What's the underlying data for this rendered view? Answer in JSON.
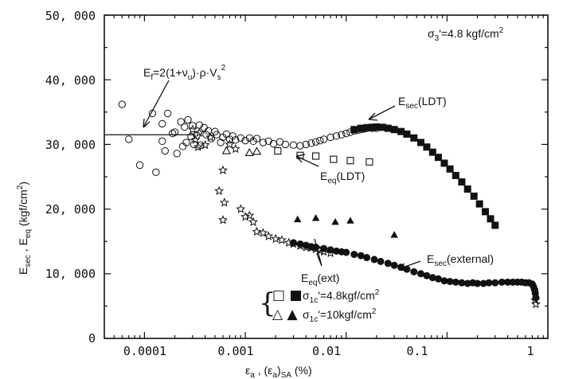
{
  "chart_data": {
    "type": "scatter",
    "title": "",
    "x_scale": "log",
    "xlim": [
      4e-05,
      1.0
    ],
    "ylim": [
      0,
      50000
    ],
    "x_ticks": [
      0.0001,
      0.001,
      0.01,
      0.1,
      1
    ],
    "x_tick_labels": [
      "0.0001",
      "0.001",
      "0.01",
      "0.1",
      "1"
    ],
    "y_ticks": [
      0,
      10000,
      20000,
      30000,
      40000,
      50000
    ],
    "y_tick_labels": [
      "0",
      "10, 000",
      "20, 000",
      "30, 000",
      "40, 000",
      "50, 000"
    ],
    "xlabel": {
      "main": "ε",
      "main_sub": "a",
      "sep": " , (ε",
      "sep_sub": "a",
      "tail": ")",
      "tail_sub": "SA",
      "unit": " (%)"
    },
    "ylabel": {
      "e1": "E",
      "e1_sub": "sec",
      "sep": " , ",
      "e2": "E",
      "e2_sub": "eq",
      "unit": " (kgf/cm",
      "unit_sup": "2",
      "close": ")"
    },
    "annotations": {
      "confining": {
        "pre": "σ",
        "sub": "3",
        "post": "'=4.8 kgf/cm",
        "sup": "2"
      },
      "ef": {
        "pre": "E",
        "sub": "f",
        "mid": "=2(1+ν",
        "mid_sub": "u",
        "post": ")·ρ·V",
        "post_sub": "s",
        "sup": "2"
      },
      "esec_ldt": {
        "pre": "E",
        "sub": "sec",
        "post": "(LDT)"
      },
      "eeq_ldt": {
        "pre": "E",
        "sub": "eq",
        "post": "(LDT)"
      },
      "esec_ext": {
        "pre": "E",
        "sub": "sec",
        "post": "(external)"
      },
      "eeq_ext": {
        "pre": "E",
        "sub": "eq",
        "post": "(ext)"
      }
    },
    "ef_line": {
      "x": [
        4e-05,
        0.00032
      ],
      "y": 31500
    },
    "legend": [
      {
        "symbols": "□ ■",
        "pre": "σ",
        "sub": "1c",
        "post": "'=4.8kgf/cm",
        "sup": "2"
      },
      {
        "symbols": "△ ▲",
        "pre": "σ",
        "sub": "1c",
        "post": "'=10kgf/cm",
        "sup": "2"
      }
    ],
    "series": [
      {
        "marker": "circle",
        "x": [
          6e-05,
          7e-05,
          9e-05,
          0.00012,
          0.00013,
          0.00015,
          0.00015,
          0.00016,
          0.00017,
          0.00019,
          0.0002,
          0.00021,
          0.00023,
          0.00024,
          0.00025,
          0.00026,
          0.00027,
          0.00029,
          0.0003,
          0.00031,
          0.00033,
          0.00035,
          0.00036,
          0.00039,
          0.00041,
          0.00043,
          0.00046,
          0.0005,
          0.00052,
          0.00057,
          0.0006,
          0.00065,
          0.0007,
          0.00075,
          0.0008,
          0.0009,
          0.001,
          0.0011,
          0.0012,
          0.0013,
          0.0015,
          0.0017,
          0.0019,
          0.0022,
          0.0025,
          0.003,
          0.0035,
          0.004,
          0.0045,
          0.005,
          0.0055,
          0.006,
          0.007,
          0.008,
          0.009,
          0.01,
          0.011,
          0.012,
          0.013,
          0.014,
          0.015,
          0.016,
          0.017,
          0.018,
          0.019,
          0.02
        ],
        "y": [
          36200,
          30800,
          26800,
          34800,
          25700,
          33200,
          30500,
          29000,
          34800,
          31700,
          31900,
          28600,
          33500,
          29700,
          32700,
          30300,
          33800,
          31200,
          32900,
          30000,
          31400,
          33000,
          29900,
          32600,
          31500,
          32100,
          30900,
          32000,
          31500,
          30300,
          31100,
          31600,
          30800,
          31300,
          30700,
          31000,
          30600,
          31000,
          30500,
          30900,
          30300,
          30500,
          30100,
          30400,
          30000,
          29900,
          29800,
          30000,
          30200,
          30400,
          30600,
          30800,
          31100,
          31300,
          31500,
          31700,
          31900,
          32100,
          32200,
          32300,
          32400,
          32500,
          32600,
          32500,
          32600,
          32500
        ]
      },
      {
        "marker": "star",
        "x": [
          0.0003,
          0.00032,
          0.00034,
          0.00035,
          0.0004,
          0.00045,
          0.00055,
          0.0006,
          0.0006,
          0.00062,
          0.0007,
          0.0008,
          0.0009,
          0.001,
          0.0011,
          0.0012,
          0.0013,
          0.0015,
          0.0017,
          0.002,
          0.0023,
          0.0027,
          0.003,
          0.0035,
          0.004,
          0.0045,
          0.005,
          0.0055,
          0.006,
          0.007,
          0.75,
          0.76
        ],
        "y": [
          32300,
          30700,
          29600,
          31800,
          29900,
          31100,
          22800,
          26000,
          18300,
          21000,
          30000,
          29300,
          20000,
          18800,
          19000,
          18000,
          16500,
          16300,
          15800,
          15400,
          15200,
          14800,
          14600,
          14300,
          14100,
          14000,
          13800,
          13600,
          13400,
          13200,
          5900,
          5300
        ]
      },
      {
        "marker": "square-open",
        "x": [
          0.0021,
          0.0035,
          0.005,
          0.0075,
          0.011,
          0.017
        ],
        "y": [
          29000,
          28300,
          28200,
          27700,
          27500,
          27300
        ]
      },
      {
        "marker": "triangle-open",
        "x": [
          0.00065,
          0.0011,
          0.0013
        ],
        "y": [
          29000,
          28700,
          28900
        ]
      },
      {
        "marker": "triangle-filled",
        "x": [
          0.0033,
          0.005,
          0.0078,
          0.011,
          0.03
        ],
        "y": [
          18400,
          18600,
          18000,
          18200,
          16000
        ]
      },
      {
        "name": "Esec(LDT)",
        "marker": "square-filled",
        "x": [
          0.012,
          0.014,
          0.016,
          0.018,
          0.02,
          0.023,
          0.026,
          0.03,
          0.035,
          0.04,
          0.047,
          0.055,
          0.063,
          0.072,
          0.082,
          0.094,
          0.107,
          0.122,
          0.14,
          0.16,
          0.185,
          0.21,
          0.24,
          0.27,
          0.3
        ],
        "y": [
          32300,
          32500,
          32600,
          32650,
          32700,
          32650,
          32500,
          32300,
          32000,
          31600,
          31000,
          30300,
          29600,
          28800,
          28000,
          27100,
          26200,
          25200,
          24200,
          23100,
          22000,
          20800,
          19600,
          18500,
          17500
        ]
      },
      {
        "name": "Esec(external)",
        "marker": "circle-filled",
        "x": [
          0.003,
          0.0035,
          0.004,
          0.0045,
          0.005,
          0.006,
          0.007,
          0.008,
          0.009,
          0.01,
          0.012,
          0.014,
          0.016,
          0.019,
          0.022,
          0.026,
          0.03,
          0.035,
          0.04,
          0.047,
          0.055,
          0.063,
          0.072,
          0.082,
          0.094,
          0.107,
          0.122,
          0.14,
          0.16,
          0.18,
          0.2,
          0.23,
          0.26,
          0.3,
          0.35,
          0.4,
          0.45,
          0.5,
          0.55,
          0.6,
          0.65,
          0.7,
          0.72,
          0.74,
          0.75,
          0.76
        ],
        "y": [
          14800,
          14600,
          14400,
          14200,
          14100,
          13900,
          13700,
          13500,
          13400,
          13300,
          13000,
          12800,
          12500,
          12200,
          11900,
          11600,
          11300,
          11000,
          10700,
          10300,
          10000,
          9700,
          9400,
          9200,
          8900,
          8800,
          8700,
          8600,
          8500,
          8600,
          8500,
          8500,
          8600,
          8600,
          8700,
          8700,
          8700,
          8700,
          8700,
          8600,
          8600,
          8400,
          8000,
          7500,
          7000,
          6300
        ]
      }
    ]
  }
}
